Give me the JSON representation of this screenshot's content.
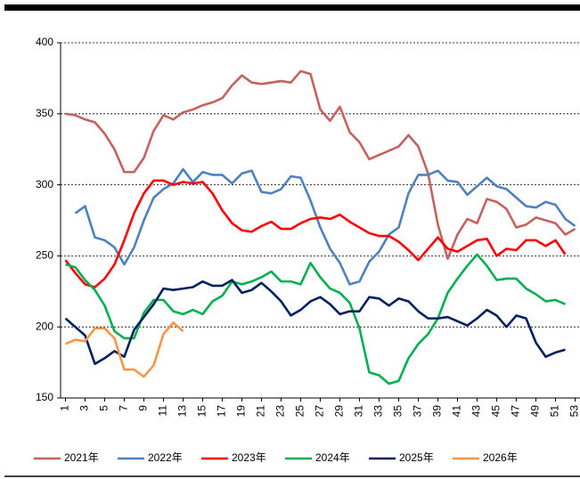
{
  "chart_data": {
    "type": "line",
    "x": [
      1,
      2,
      3,
      4,
      5,
      6,
      7,
      8,
      9,
      10,
      11,
      12,
      13,
      14,
      15,
      16,
      17,
      18,
      19,
      20,
      21,
      22,
      23,
      24,
      25,
      26,
      27,
      28,
      29,
      30,
      31,
      32,
      33,
      34,
      35,
      36,
      37,
      38,
      39,
      40,
      41,
      42,
      43,
      44,
      45,
      46,
      47,
      48,
      49,
      50,
      51,
      52,
      53
    ],
    "xlim": [
      0.5,
      53.5
    ],
    "xticks": [
      1,
      3,
      5,
      7,
      9,
      11,
      13,
      15,
      17,
      19,
      21,
      23,
      25,
      27,
      29,
      31,
      33,
      35,
      37,
      39,
      41,
      43,
      45,
      47,
      49,
      51,
      53
    ],
    "ylim": [
      150,
      400
    ],
    "yticks": [
      150,
      200,
      250,
      300,
      350,
      400
    ],
    "grid": true,
    "legend": "bottom",
    "series": [
      {
        "name": "2021年",
        "color": "#c5625f",
        "values": [
          350,
          349,
          346,
          344,
          336,
          325,
          309,
          309,
          319,
          338,
          349,
          346,
          351,
          353,
          356,
          358,
          361,
          370,
          377,
          372,
          371,
          372,
          373,
          372,
          380,
          378,
          353,
          345,
          355,
          337,
          330,
          318,
          321,
          324,
          327,
          335,
          327,
          308,
          272,
          248,
          265,
          276,
          273,
          290,
          288,
          283,
          270,
          272,
          277,
          275,
          273,
          265,
          269
        ]
      },
      {
        "name": "2022年",
        "color": "#4f81bd",
        "values": [
          null,
          280,
          285,
          263,
          261,
          256,
          244,
          256,
          275,
          291,
          297,
          301,
          311,
          302,
          309,
          307,
          307,
          301,
          308,
          310,
          295,
          294,
          297,
          306,
          305,
          289,
          270,
          255,
          245,
          230,
          232,
          246,
          253,
          265,
          270,
          294,
          307,
          307,
          310,
          303,
          302,
          293,
          299,
          305,
          299,
          297,
          291,
          285,
          284,
          288,
          286,
          276,
          271
        ]
      },
      {
        "name": "2023年",
        "color": "#ff0000",
        "values": [
          247,
          238,
          230,
          228,
          234,
          244,
          261,
          280,
          294,
          303,
          303,
          300,
          302,
          301,
          302,
          294,
          282,
          273,
          268,
          267,
          271,
          274,
          269,
          269,
          273,
          276,
          277,
          276,
          279,
          274,
          270,
          266,
          264,
          264,
          260,
          254,
          247,
          255,
          263,
          255,
          253,
          257,
          261,
          262,
          250,
          255,
          254,
          261,
          261,
          257,
          261,
          251,
          null
        ]
      },
      {
        "name": "2024年",
        "color": "#00b050",
        "values": [
          244,
          242,
          233,
          226,
          215,
          197,
          192,
          192,
          210,
          219,
          219,
          211,
          209,
          212,
          209,
          218,
          222,
          232,
          230,
          232,
          235,
          239,
          232,
          232,
          230,
          245,
          235,
          227,
          224,
          217,
          199,
          168,
          166,
          160,
          162,
          178,
          188,
          195,
          206,
          224,
          234,
          243,
          251,
          243,
          233,
          234,
          234,
          227,
          223,
          218,
          219,
          216,
          null
        ]
      },
      {
        "name": "2025年",
        "color": "#002060",
        "values": [
          206,
          200,
          194,
          174,
          178,
          183,
          179,
          198,
          207,
          216,
          227,
          226,
          227,
          228,
          232,
          229,
          229,
          233,
          224,
          226,
          231,
          225,
          218,
          208,
          212,
          218,
          221,
          216,
          209,
          211,
          211,
          221,
          220,
          215,
          220,
          218,
          211,
          206,
          206,
          207,
          204,
          201,
          206,
          212,
          208,
          200,
          208,
          206,
          189,
          179,
          182,
          184,
          null
        ]
      },
      {
        "name": "2026年",
        "color": "#f79646",
        "values": [
          188,
          191,
          190,
          199,
          199,
          192,
          170,
          170,
          165,
          173,
          195,
          203,
          197,
          null,
          null,
          null,
          null,
          null,
          null,
          null,
          null,
          null,
          null,
          null,
          null,
          null,
          null,
          null,
          null,
          null,
          null,
          null,
          null,
          null,
          null,
          null,
          null,
          null,
          null,
          null,
          null,
          null,
          null,
          null,
          null,
          null,
          null,
          null,
          null,
          null,
          null,
          null,
          null
        ]
      }
    ]
  }
}
